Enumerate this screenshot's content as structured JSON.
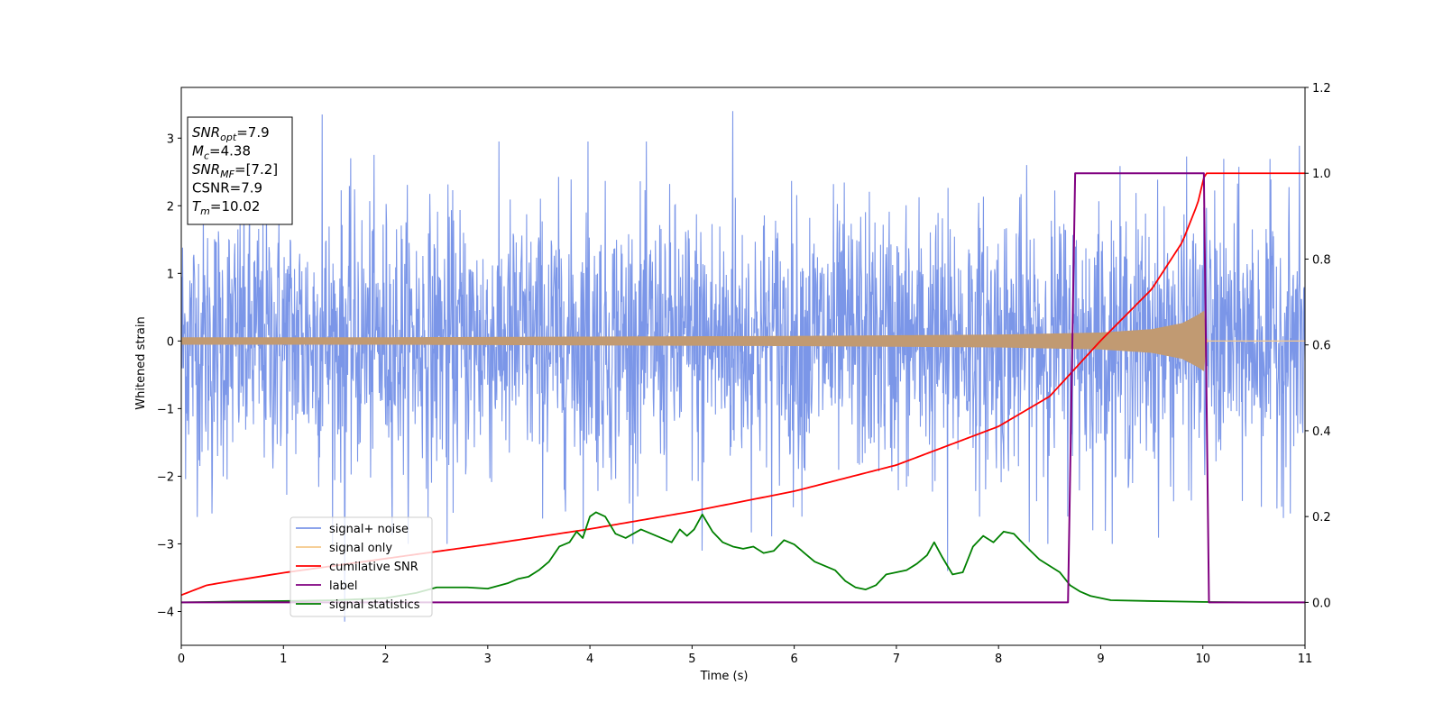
{
  "chart_data": {
    "type": "line",
    "xlabel": "Time (s)",
    "ylabel": "Whitened strain",
    "xlim": [
      0,
      11
    ],
    "ylim": [
      -4.5,
      3.75
    ],
    "y2lim": [
      -0.1,
      1.2
    ],
    "x_ticks": [
      "0",
      "1",
      "2",
      "3",
      "4",
      "5",
      "6",
      "7",
      "8",
      "9",
      "10",
      "11"
    ],
    "y_ticks": [
      "−4",
      "−3",
      "−2",
      "−1",
      "0",
      "1",
      "2",
      "3"
    ],
    "y2_ticks": [
      "0.0",
      "0.2",
      "0.4",
      "0.6",
      "0.8",
      "1.0",
      "1.2"
    ],
    "legend_position": "lower-left",
    "info_box": {
      "lines": [
        {
          "base": "SNR",
          "sub": "opt",
          "rest": "=7.9"
        },
        {
          "base": "M",
          "sub": "c",
          "rest": "=4.38"
        },
        {
          "base": "SNR",
          "sub": "MF",
          "rest": "=[7.2]"
        },
        {
          "base": "CSNR",
          "sub": "",
          "rest": "=7.9"
        },
        {
          "base": "T",
          "sub": "m",
          "rest": "=10.02"
        }
      ]
    },
    "series": [
      {
        "name": "signal+ noise",
        "color": "#7b96e8",
        "axis": "left",
        "style": "noise-band",
        "typical_amplitude": 1.6,
        "peaks": [
          [
            1.38,
            3.35
          ],
          [
            5.4,
            3.4
          ],
          [
            3.98,
            2.95
          ],
          [
            1.6,
            -4.15
          ],
          [
            7.5,
            -3.4
          ],
          [
            0.3,
            -2.55
          ],
          [
            2.6,
            -3.0
          ],
          [
            5.1,
            -3.1
          ]
        ]
      },
      {
        "name": "signal only",
        "color": "#f5c88a",
        "axis": "left",
        "style": "chirp-envelope",
        "envelope": {
          "x": [
            0,
            2,
            4,
            6,
            8,
            9,
            9.5,
            9.8,
            9.95,
            10.02,
            10.03,
            11
          ],
          "y": [
            0.05,
            0.05,
            0.06,
            0.07,
            0.09,
            0.12,
            0.17,
            0.26,
            0.38,
            0.45,
            0.0,
            0.0
          ]
        }
      },
      {
        "name": "cumilative SNR",
        "color": "#ff0000",
        "axis": "right",
        "x": [
          0,
          0.25,
          0.5,
          1,
          2,
          3,
          4,
          5,
          6,
          7,
          8,
          8.5,
          9,
          9.5,
          9.8,
          9.95,
          10.02,
          11
        ],
        "y": [
          0.017,
          0.04,
          0.05,
          0.069,
          0.102,
          0.135,
          0.171,
          0.212,
          0.259,
          0.32,
          0.41,
          0.48,
          0.61,
          0.73,
          0.84,
          0.93,
          1.0,
          1.0
        ]
      },
      {
        "name": "label",
        "color": "#800080",
        "axis": "right",
        "x": [
          0,
          8.68,
          8.75,
          10.01,
          10.06,
          11
        ],
        "y": [
          0,
          0,
          1,
          1,
          0,
          0
        ]
      },
      {
        "name": "signal statistics",
        "color": "#008000",
        "axis": "right",
        "x": [
          0,
          0.5,
          1,
          1.5,
          2,
          2.3,
          2.5,
          2.8,
          3.0,
          3.2,
          3.3,
          3.4,
          3.5,
          3.6,
          3.7,
          3.8,
          3.87,
          3.93,
          4.0,
          4.06,
          4.15,
          4.25,
          4.35,
          4.5,
          4.6,
          4.7,
          4.8,
          4.88,
          4.95,
          5.02,
          5.1,
          5.2,
          5.3,
          5.4,
          5.5,
          5.6,
          5.7,
          5.8,
          5.9,
          6.0,
          6.1,
          6.2,
          6.3,
          6.4,
          6.5,
          6.6,
          6.7,
          6.8,
          6.9,
          7.0,
          7.1,
          7.2,
          7.3,
          7.37,
          7.45,
          7.55,
          7.65,
          7.75,
          7.85,
          7.95,
          8.05,
          8.15,
          8.25,
          8.4,
          8.6,
          8.7,
          8.8,
          8.9,
          9.1,
          9.5,
          10.0,
          10.5,
          11.0
        ],
        "y": [
          0.0,
          0.002,
          0.003,
          0.005,
          0.01,
          0.022,
          0.035,
          0.035,
          0.032,
          0.045,
          0.055,
          0.06,
          0.075,
          0.095,
          0.13,
          0.14,
          0.165,
          0.15,
          0.2,
          0.21,
          0.2,
          0.16,
          0.15,
          0.17,
          0.16,
          0.15,
          0.14,
          0.17,
          0.155,
          0.17,
          0.205,
          0.165,
          0.14,
          0.13,
          0.125,
          0.13,
          0.115,
          0.12,
          0.145,
          0.135,
          0.115,
          0.095,
          0.085,
          0.075,
          0.05,
          0.035,
          0.03,
          0.04,
          0.065,
          0.07,
          0.075,
          0.09,
          0.11,
          0.14,
          0.105,
          0.065,
          0.07,
          0.13,
          0.155,
          0.14,
          0.165,
          0.16,
          0.135,
          0.1,
          0.07,
          0.04,
          0.025,
          0.015,
          0.005,
          0.003,
          0.001,
          0.0,
          0.0
        ]
      }
    ]
  }
}
